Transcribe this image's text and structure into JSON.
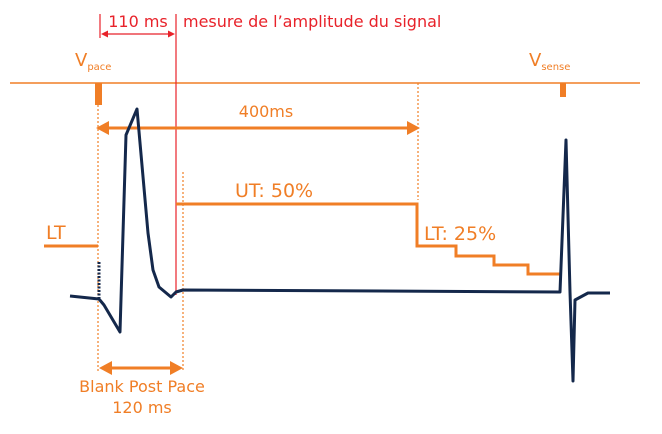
{
  "labels": {
    "duration_110": "110 ms",
    "mesure": "mesure de l’amplitude du signal",
    "vpace_main": "V",
    "vpace_sub": "pace",
    "vsense_main": "V",
    "vsense_sub": "sense",
    "duration_400": "400ms",
    "ut": "UT: 50%",
    "lt_left": "LT",
    "lt_right": "LT: 25%",
    "blank_line1": "Blank Post Pace",
    "blank_line2": "120 ms"
  },
  "colors": {
    "accent": "#f07e26",
    "red": "#e8222a",
    "signal": "#14284b",
    "background": "#ffffff"
  }
}
